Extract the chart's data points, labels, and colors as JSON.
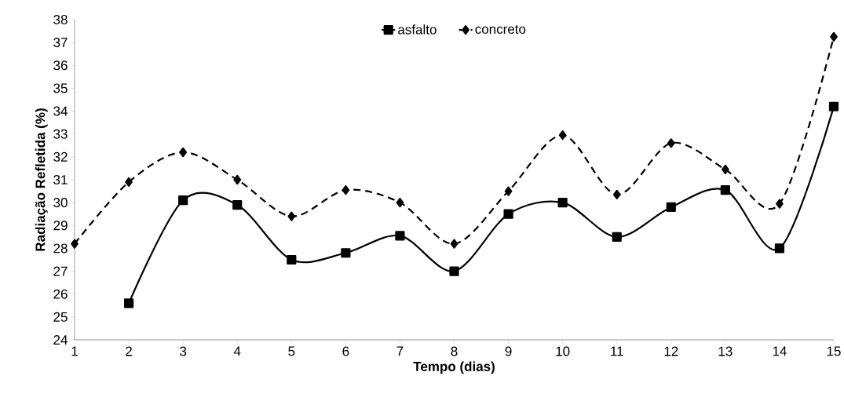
{
  "chart_data": {
    "type": "line",
    "xlabel": "Tempo (dias)",
    "ylabel": "Radiação Refletida (%)",
    "x": [
      1,
      2,
      3,
      4,
      5,
      6,
      7,
      8,
      9,
      10,
      11,
      12,
      13,
      14,
      15
    ],
    "series": [
      {
        "name": "asfalto",
        "color": "#000000",
        "marker": "square",
        "line_style": "solid",
        "values": [
          null,
          25.6,
          30.1,
          29.9,
          27.5,
          27.8,
          28.55,
          27.0,
          29.5,
          30.0,
          28.5,
          29.8,
          30.55,
          28.0,
          34.2
        ]
      },
      {
        "name": "concreto",
        "color": "#000000",
        "marker": "diamond",
        "line_style": "dashed",
        "values": [
          28.2,
          30.9,
          32.2,
          31.0,
          29.4,
          30.55,
          30.0,
          28.2,
          30.5,
          32.95,
          30.35,
          32.6,
          31.45,
          29.95,
          37.25
        ]
      }
    ],
    "xlim": [
      1,
      15
    ],
    "xticks": [
      1,
      2,
      3,
      4,
      5,
      6,
      7,
      8,
      9,
      10,
      11,
      12,
      13,
      14,
      15
    ],
    "ylim": [
      24,
      38
    ],
    "yticks": [
      24,
      25,
      26,
      27,
      28,
      29,
      30,
      31,
      32,
      33,
      34,
      35,
      36,
      37,
      38
    ],
    "legend": "top",
    "grid": false
  }
}
